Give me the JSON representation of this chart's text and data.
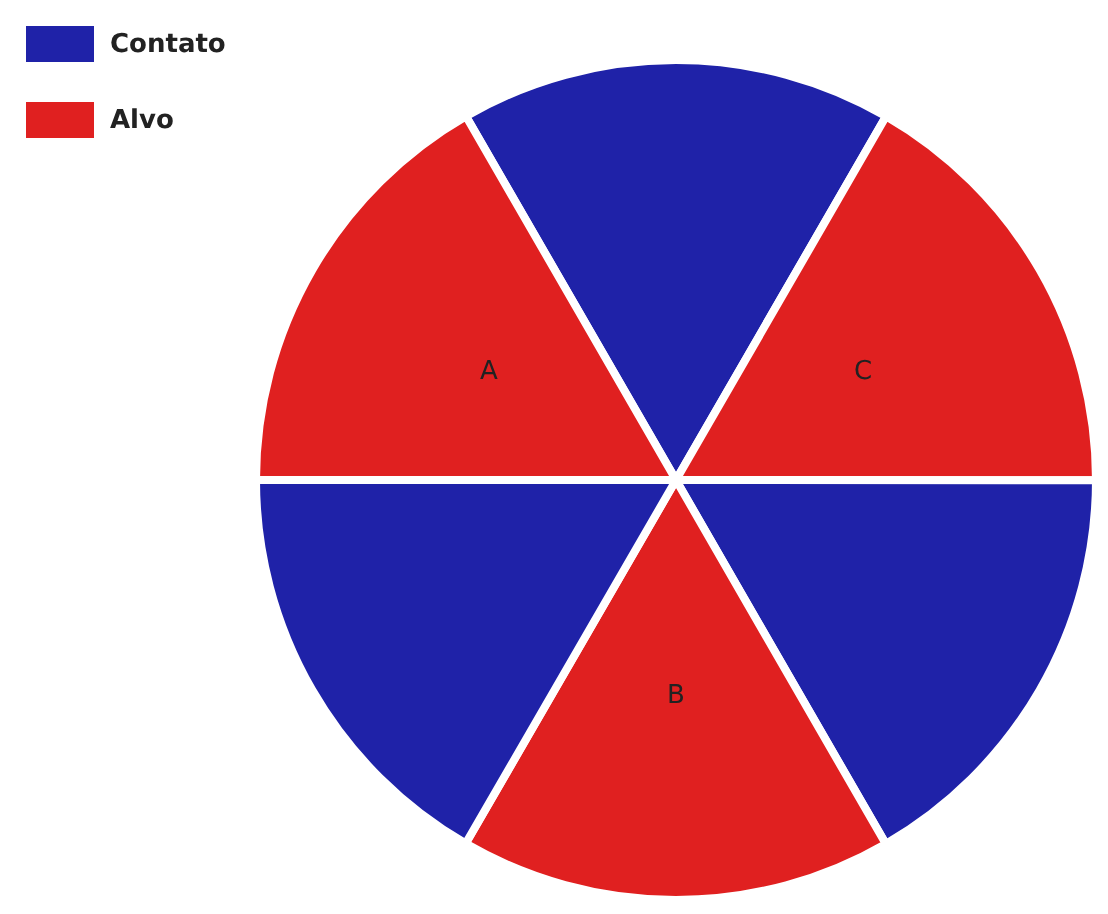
{
  "chart_data": {
    "type": "pie",
    "categories": [
      null,
      "C",
      null,
      "B",
      null,
      "A"
    ],
    "values": [
      16.67,
      16.67,
      16.67,
      16.67,
      16.66,
      16.66
    ],
    "colors": [
      "#1f22a8",
      "#e02020",
      "#1f22a8",
      "#e02020",
      "#1f22a8",
      "#e02020"
    ],
    "annotations": [
      "Contato",
      "Alvo"
    ]
  }
}
